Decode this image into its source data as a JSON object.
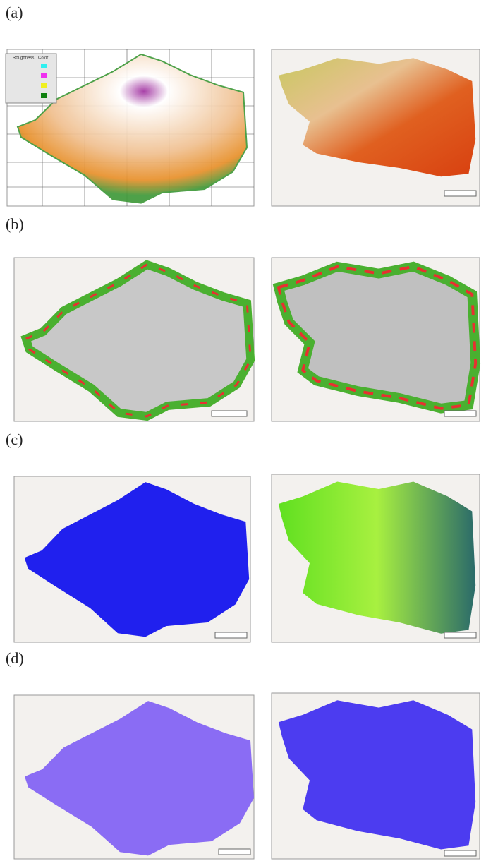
{
  "panels": [
    {
      "label": "(a)"
    },
    {
      "label": "(b)"
    },
    {
      "label": "(c)"
    },
    {
      "label": "(d)"
    }
  ],
  "legend": {
    "title": "Roughness",
    "color_header": "Color"
  }
}
